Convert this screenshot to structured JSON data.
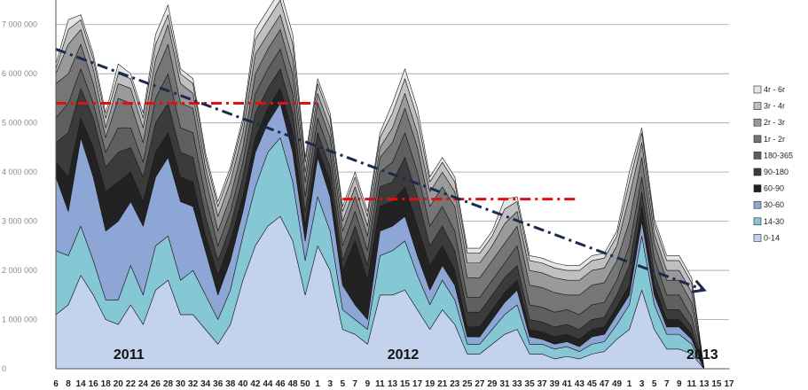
{
  "chart_data": {
    "type": "area",
    "stacked": true,
    "title": "",
    "xlabel": "",
    "ylabel": "",
    "ylim": [
      0,
      7500000
    ],
    "y_ticks": [
      0,
      1000000,
      2000000,
      3000000,
      4000000,
      5000000,
      6000000,
      7000000
    ],
    "y_tick_labels": [
      "0",
      "1 000 000",
      "2 000 000",
      "3 000 000",
      "4 000 000",
      "5 000 000",
      "6 000 000",
      "7 000 000"
    ],
    "grid": true,
    "legend_position": "right",
    "categories": [
      "6",
      "8",
      "14",
      "16",
      "18",
      "20",
      "22",
      "24",
      "26",
      "28",
      "30",
      "32",
      "34",
      "36",
      "38",
      "40",
      "42",
      "44",
      "46",
      "48",
      "50",
      "1",
      "3",
      "5",
      "7",
      "9",
      "11",
      "13",
      "15",
      "17",
      "19",
      "21",
      "23",
      "25",
      "27",
      "29",
      "31",
      "33",
      "35",
      "37",
      "39",
      "41",
      "43",
      "45",
      "47",
      "49",
      "1",
      "3",
      "5",
      "7",
      "9",
      "11",
      "13",
      "15",
      "17"
    ],
    "x_tick_labels": [
      "6",
      "8",
      "14",
      "16",
      "18",
      "20",
      "22",
      "24",
      "26",
      "28",
      "30",
      "32",
      "34",
      "36",
      "38",
      "40",
      "42",
      "44",
      "46",
      "48",
      "50",
      "1",
      "3",
      "5",
      "7",
      "9",
      "11",
      "13",
      "15",
      "17",
      "19",
      "21",
      "23",
      "25",
      "27",
      "29",
      "31",
      "33",
      "35",
      "37",
      "39",
      "41",
      "43",
      "45",
      "47",
      "49",
      "1",
      "3",
      "5",
      "7",
      "9",
      "11",
      "13",
      "15",
      "17"
    ],
    "year_labels": [
      {
        "text": "2011",
        "category_index": 5
      },
      {
        "text": "2012",
        "category_index": 27
      },
      {
        "text": "2013",
        "category_index": 51
      }
    ],
    "series": [
      {
        "name": "0-14",
        "color": "#c3d3ee",
        "values": [
          1100000,
          1300000,
          1900000,
          1500000,
          1000000,
          900000,
          1300000,
          900000,
          1600000,
          1800000,
          1100000,
          1100000,
          800000,
          500000,
          900000,
          1800000,
          2500000,
          2900000,
          3100000,
          2600000,
          1500000,
          2500000,
          2000000,
          800000,
          700000,
          500000,
          1500000,
          1500000,
          1600000,
          1200000,
          800000,
          1200000,
          900000,
          300000,
          300000,
          500000,
          700000,
          800000,
          300000,
          300000,
          200000,
          250000,
          200000,
          300000,
          350000,
          600000,
          800000,
          1600000,
          800000,
          400000,
          400000,
          300000,
          0,
          0,
          0
        ]
      },
      {
        "name": "14-30",
        "color": "#86c7d6",
        "values": [
          1300000,
          1000000,
          1000000,
          700000,
          400000,
          500000,
          800000,
          600000,
          900000,
          900000,
          700000,
          900000,
          700000,
          500000,
          700000,
          900000,
          1200000,
          1500000,
          1600000,
          1200000,
          700000,
          1000000,
          800000,
          400000,
          300000,
          300000,
          800000,
          900000,
          1000000,
          700000,
          500000,
          600000,
          500000,
          200000,
          200000,
          300000,
          400000,
          500000,
          200000,
          200000,
          200000,
          200000,
          150000,
          200000,
          200000,
          300000,
          500000,
          1100000,
          500000,
          300000,
          300000,
          200000,
          0,
          0,
          0
        ]
      },
      {
        "name": "30-60",
        "color": "#8ea6d5",
        "values": [
          1500000,
          900000,
          1800000,
          1700000,
          1400000,
          1600000,
          1300000,
          1400000,
          1400000,
          1600000,
          1600000,
          1300000,
          900000,
          500000,
          600000,
          500000,
          700000,
          600000,
          700000,
          600000,
          400000,
          800000,
          700000,
          500000,
          300000,
          200000,
          500000,
          500000,
          500000,
          400000,
          300000,
          300000,
          300000,
          150000,
          150000,
          200000,
          250000,
          300000,
          150000,
          100000,
          100000,
          100000,
          100000,
          150000,
          150000,
          200000,
          200000,
          300000,
          200000,
          150000,
          150000,
          100000,
          0,
          0,
          0
        ]
      },
      {
        "name": "60-90",
        "color": "#222222",
        "values": [
          300000,
          700000,
          400000,
          600000,
          800000,
          800000,
          600000,
          500000,
          500000,
          500000,
          500000,
          500000,
          300000,
          400000,
          400000,
          300000,
          300000,
          300000,
          300000,
          400000,
          300000,
          200000,
          300000,
          300000,
          1300000,
          800000,
          500000,
          500000,
          600000,
          600000,
          500000,
          400000,
          300000,
          200000,
          200000,
          200000,
          200000,
          200000,
          150000,
          150000,
          150000,
          150000,
          150000,
          150000,
          150000,
          150000,
          200000,
          300000,
          200000,
          150000,
          150000,
          100000,
          0,
          0,
          0
        ]
      },
      {
        "name": "90-180",
        "color": "#3b3b3b",
        "values": [
          400000,
          900000,
          600000,
          600000,
          500000,
          600000,
          500000,
          500000,
          600000,
          600000,
          500000,
          500000,
          400000,
          300000,
          300000,
          400000,
          500000,
          400000,
          400000,
          400000,
          300000,
          300000,
          300000,
          200000,
          300000,
          300000,
          400000,
          400000,
          600000,
          600000,
          400000,
          400000,
          400000,
          300000,
          300000,
          300000,
          300000,
          300000,
          200000,
          200000,
          200000,
          200000,
          200000,
          200000,
          200000,
          250000,
          400000,
          300000,
          250000,
          200000,
          200000,
          150000,
          0,
          0,
          0
        ]
      },
      {
        "name": "180-365",
        "color": "#5f5f5f",
        "values": [
          500000,
          600000,
          400000,
          300000,
          300000,
          500000,
          400000,
          300000,
          500000,
          600000,
          500000,
          500000,
          400000,
          300000,
          300000,
          300000,
          400000,
          400000,
          400000,
          400000,
          300000,
          300000,
          300000,
          300000,
          300000,
          300000,
          300000,
          400000,
          500000,
          500000,
          400000,
          400000,
          400000,
          300000,
          300000,
          300000,
          300000,
          400000,
          300000,
          300000,
          300000,
          300000,
          300000,
          300000,
          300000,
          300000,
          400000,
          300000,
          300000,
          300000,
          300000,
          200000,
          0,
          0,
          0
        ]
      },
      {
        "name": "1r - 2r",
        "color": "#767676",
        "values": [
          700000,
          600000,
          500000,
          400000,
          300000,
          600000,
          500000,
          400000,
          500000,
          600000,
          500000,
          500000,
          400000,
          300000,
          300000,
          300000,
          400000,
          400000,
          400000,
          400000,
          300000,
          300000,
          300000,
          300000,
          300000,
          300000,
          300000,
          400000,
          500000,
          500000,
          400000,
          400000,
          500000,
          400000,
          400000,
          400000,
          400000,
          400000,
          400000,
          400000,
          400000,
          300000,
          400000,
          400000,
          400000,
          400000,
          500000,
          400000,
          300000,
          300000,
          300000,
          300000,
          0,
          0,
          0
        ]
      },
      {
        "name": "2r - 3r",
        "color": "#9a9a9a",
        "values": [
          200000,
          600000,
          300000,
          300000,
          200000,
          300000,
          300000,
          300000,
          300000,
          400000,
          400000,
          300000,
          200000,
          300000,
          300000,
          300000,
          400000,
          300000,
          300000,
          300000,
          200000,
          200000,
          200000,
          200000,
          200000,
          200000,
          200000,
          300000,
          300000,
          300000,
          300000,
          300000,
          300000,
          300000,
          300000,
          300000,
          400000,
          300000,
          300000,
          300000,
          300000,
          300000,
          300000,
          300000,
          300000,
          300000,
          500000,
          300000,
          200000,
          200000,
          200000,
          200000,
          0,
          0,
          0
        ]
      },
      {
        "name": "3r - 4r",
        "color": "#c0c0c0",
        "values": [
          100000,
          300000,
          200000,
          200000,
          200000,
          200000,
          200000,
          200000,
          300000,
          200000,
          200000,
          200000,
          200000,
          200000,
          200000,
          200000,
          300000,
          300000,
          300000,
          300000,
          200000,
          200000,
          200000,
          200000,
          200000,
          200000,
          200000,
          300000,
          300000,
          300000,
          200000,
          200000,
          200000,
          200000,
          200000,
          200000,
          300000,
          200000,
          200000,
          200000,
          200000,
          200000,
          200000,
          200000,
          200000,
          200000,
          300000,
          200000,
          200000,
          200000,
          200000,
          200000,
          0,
          0,
          0
        ]
      },
      {
        "name": "4r - 6r",
        "color": "#e6e6e6",
        "values": [
          100000,
          200000,
          100000,
          100000,
          100000,
          200000,
          100000,
          100000,
          200000,
          200000,
          100000,
          100000,
          100000,
          100000,
          100000,
          100000,
          200000,
          200000,
          200000,
          200000,
          100000,
          100000,
          100000,
          100000,
          100000,
          100000,
          100000,
          200000,
          200000,
          200000,
          100000,
          100000,
          100000,
          100000,
          100000,
          100000,
          200000,
          100000,
          100000,
          100000,
          100000,
          100000,
          100000,
          100000,
          100000,
          100000,
          200000,
          100000,
          100000,
          100000,
          100000,
          100000,
          0,
          0,
          0
        ]
      }
    ],
    "annotations": [
      {
        "kind": "hline",
        "color": "#e01010",
        "style": "dash-dot",
        "y": 5400000,
        "x_from_index": 0,
        "x_to_index": 21
      },
      {
        "kind": "hline",
        "color": "#e01010",
        "style": "dash-dot",
        "y": 3450000,
        "x_from_index": 23,
        "x_to_index": 42
      },
      {
        "kind": "trend-arrow",
        "color": "#1b2b4b",
        "style": "dash-dot",
        "y_start": 6500000,
        "y_end": 1600000,
        "x_from_index": 0,
        "x_to_index": 52
      }
    ]
  }
}
